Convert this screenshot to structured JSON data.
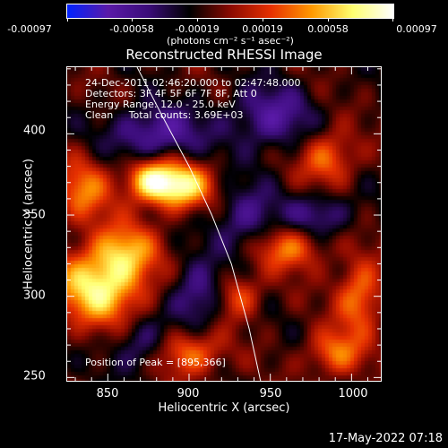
{
  "colorbar": {
    "tick_labels": [
      "-0.00097",
      "-0.00058",
      "-0.00019",
      "0.00019",
      "0.00058",
      "0.00097"
    ],
    "units": "(photons cm⁻² s⁻¹ asec⁻²)",
    "colors": [
      "#0022ff",
      "#5a1aa8",
      "#3a0c78",
      "#000000",
      "#8a0a00",
      "#e63000",
      "#ff9900",
      "#ffff70",
      "#ffffff"
    ]
  },
  "info": {
    "line1": "24-Dec-2011 02:46:20.000 to 02:47:48.000",
    "line2": "Detectors: 3F 4F 5F 6F 7F 8F, Att 0",
    "line3": "Energy Range: 12.0 - 25.0 keV",
    "line4": "Clean     Total counts: 3.69E+03",
    "peak": "Position of Peak = [895,366]"
  },
  "footer": "17-May-2022 07:18",
  "chart_data": {
    "type": "heatmap",
    "title": "Reconstructed RHESSI Image",
    "xlabel": "Heliocentric X (arcsec)",
    "ylabel": "Heliocentric Y (arcsec)",
    "xlim": [
      825,
      1018
    ],
    "ylim": [
      248,
      441
    ],
    "xticks": [
      850,
      900,
      950,
      1000
    ],
    "yticks": [
      250,
      300,
      350,
      400
    ],
    "zlim": [
      -0.00097,
      0.00097
    ],
    "peak": [
      895,
      366
    ],
    "limb_curve": [
      [
        868,
        441
      ],
      [
        884,
        410
      ],
      [
        900,
        380
      ],
      [
        914,
        350
      ],
      [
        926,
        320
      ],
      [
        937,
        280
      ],
      [
        944,
        248
      ]
    ],
    "bright_sources": [
      {
        "x": 893,
        "y": 368,
        "amp": 1.0,
        "sx": 14,
        "sy": 10
      },
      {
        "x": 875,
        "y": 372,
        "amp": 0.7,
        "sx": 10,
        "sy": 9
      },
      {
        "x": 845,
        "y": 305,
        "amp": 0.9,
        "sx": 20,
        "sy": 16
      },
      {
        "x": 860,
        "y": 328,
        "amp": 0.6,
        "sx": 14,
        "sy": 12
      },
      {
        "x": 835,
        "y": 365,
        "amp": 0.55,
        "sx": 12,
        "sy": 14
      },
      {
        "x": 960,
        "y": 330,
        "amp": 0.6,
        "sx": 16,
        "sy": 10
      },
      {
        "x": 985,
        "y": 385,
        "amp": 0.55,
        "sx": 12,
        "sy": 12
      },
      {
        "x": 1005,
        "y": 300,
        "amp": 0.6,
        "sx": 10,
        "sy": 16
      },
      {
        "x": 990,
        "y": 265,
        "amp": 0.55,
        "sx": 12,
        "sy": 10
      },
      {
        "x": 900,
        "y": 265,
        "amp": 0.6,
        "sx": 14,
        "sy": 10
      },
      {
        "x": 930,
        "y": 300,
        "amp": 0.5,
        "sx": 10,
        "sy": 10
      }
    ],
    "dark_sources": [
      {
        "x": 880,
        "y": 400,
        "amp": -0.55,
        "sx": 20,
        "sy": 12
      },
      {
        "x": 950,
        "y": 410,
        "amp": -0.5,
        "sx": 18,
        "sy": 14
      },
      {
        "x": 935,
        "y": 345,
        "amp": -0.45,
        "sx": 14,
        "sy": 16
      },
      {
        "x": 905,
        "y": 300,
        "amp": -0.5,
        "sx": 12,
        "sy": 14
      },
      {
        "x": 980,
        "y": 350,
        "amp": -0.45,
        "sx": 14,
        "sy": 10
      },
      {
        "x": 870,
        "y": 270,
        "amp": -0.4,
        "sx": 12,
        "sy": 12
      }
    ]
  }
}
